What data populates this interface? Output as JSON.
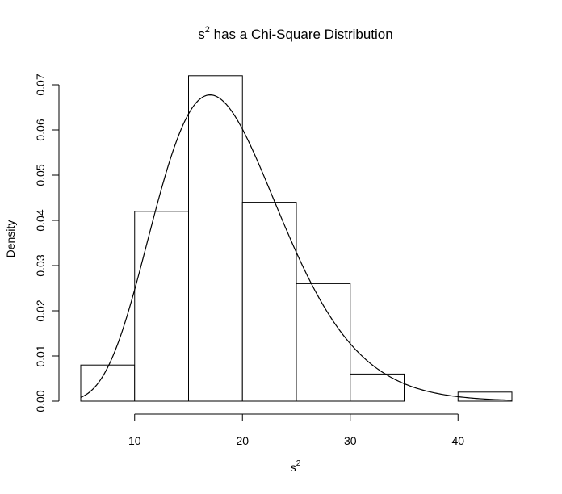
{
  "chart_data": {
    "type": "bar",
    "title": "s",
    "title_superscript": "2",
    "title_rest": " has a Chi-Square Distribution",
    "xlabel": "s",
    "xlabel_superscript": "2",
    "ylabel": "Density",
    "xlim": [
      5,
      45
    ],
    "ylim": [
      0,
      0.07
    ],
    "x_ticks": [
      10,
      20,
      30,
      40
    ],
    "y_ticks": [
      "0.00",
      "0.01",
      "0.02",
      "0.03",
      "0.04",
      "0.05",
      "0.06",
      "0.07"
    ],
    "bins": [
      {
        "from": 5,
        "to": 10,
        "density": 0.008
      },
      {
        "from": 10,
        "to": 15,
        "density": 0.042
      },
      {
        "from": 15,
        "to": 20,
        "density": 0.072
      },
      {
        "from": 20,
        "to": 25,
        "density": 0.044
      },
      {
        "from": 25,
        "to": 30,
        "density": 0.026
      },
      {
        "from": 30,
        "to": 35,
        "density": 0.006
      },
      {
        "from": 35,
        "to": 40,
        "density": 0.0
      },
      {
        "from": 40,
        "to": 45,
        "density": 0.002
      }
    ],
    "curve": {
      "distribution": "chi-square",
      "df": 19,
      "range": [
        5,
        45
      ]
    },
    "grid": false,
    "legend": "none",
    "colors": {
      "bar_fill": "#ffffff",
      "stroke": "#000000"
    }
  }
}
